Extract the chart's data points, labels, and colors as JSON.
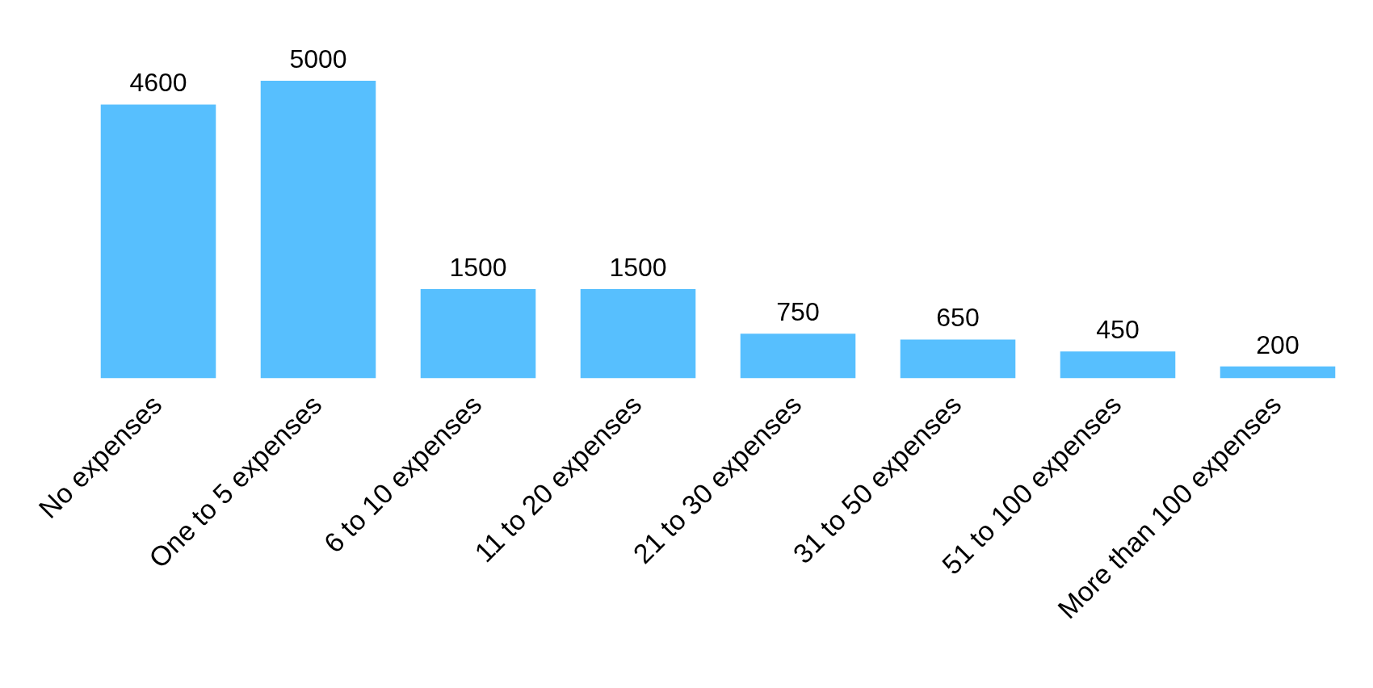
{
  "chart_data": {
    "type": "bar",
    "categories": [
      "No expenses",
      "One to 5 expenses",
      "6 to 10 expenses",
      "11 to 20 expenses",
      "21 to 30 expenses",
      "31 to 50 expenses",
      "51 to 100 expenses",
      "More than 100 expenses"
    ],
    "values": [
      4600,
      5000,
      1500,
      1500,
      750,
      650,
      450,
      200
    ],
    "color": "#57bffe",
    "data_labels": true,
    "tick_labels": "x"
  }
}
